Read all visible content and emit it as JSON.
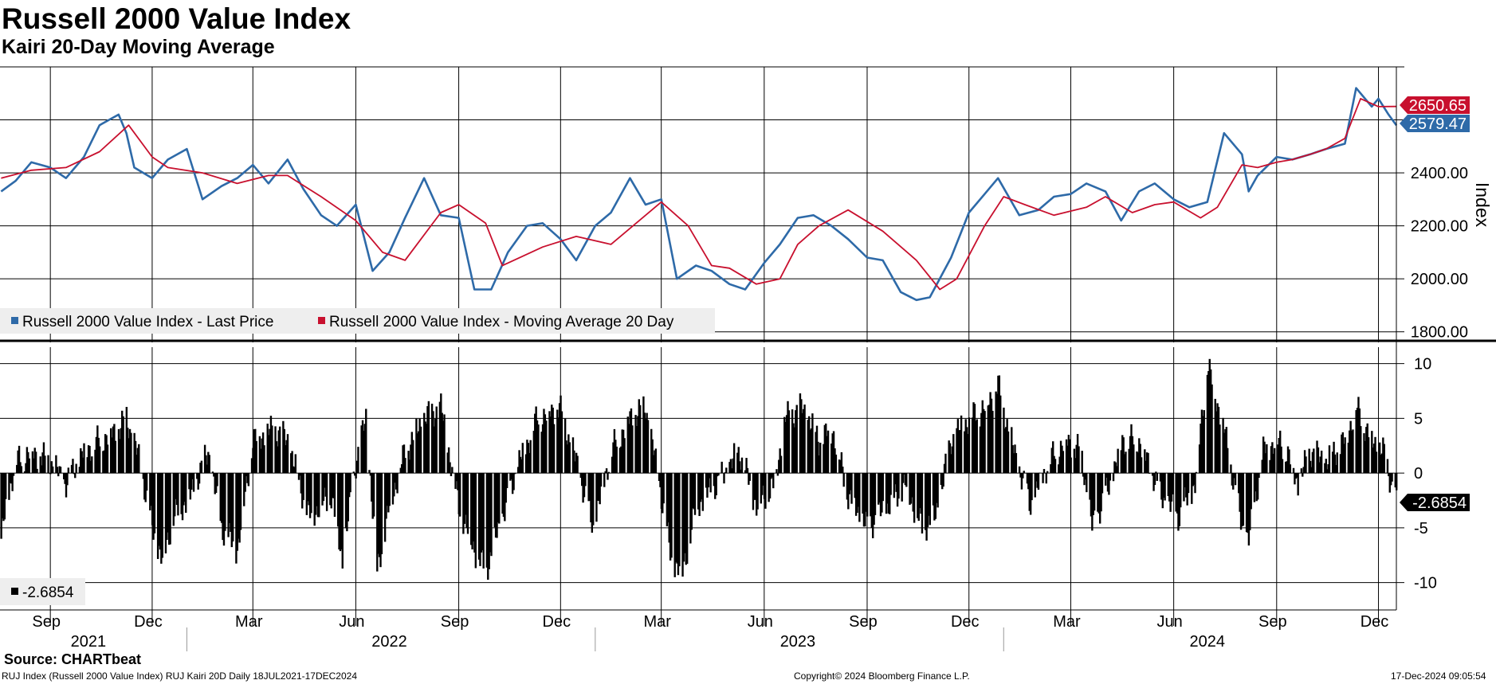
{
  "header": {
    "title": "Russell 2000 Value Index",
    "subtitle": "Kairi 20-Day Moving Average"
  },
  "footer": {
    "source": "Source: CHARTbeat",
    "description": "RUJ Index (Russell 2000 Value Index) RUJ Kairi 20D  Daily 18JUL2021-17DEC2024",
    "copyright": "Copyright© 2024 Bloomberg Finance L.P.",
    "timestamp": "17-Dec-2024 09:05:54"
  },
  "colors": {
    "price_line": "#2e6aa8",
    "ma_line": "#c8102e",
    "kairi_bars": "#000000",
    "grid": "#000000",
    "background": "#ffffff"
  },
  "chart_data": [
    {
      "type": "line",
      "title": "Russell 2000 Value Index",
      "ylabel": "Index",
      "ylim": [
        1760,
        2800
      ],
      "yticks": [
        "1800.00",
        "2000.00",
        "2200.00",
        "2400.00"
      ],
      "x_range": [
        "2021-07-18",
        "2024-12-17"
      ],
      "series": [
        {
          "name": "Russell 2000 Value Index - Last Price",
          "last_value": "2579.47",
          "dates": [
            "2021-07-19",
            "2021-08-01",
            "2021-08-15",
            "2021-09-01",
            "2021-09-15",
            "2021-10-01",
            "2021-10-15",
            "2021-11-01",
            "2021-11-08",
            "2021-11-15",
            "2021-12-01",
            "2021-12-15",
            "2022-01-01",
            "2022-01-15",
            "2022-02-01",
            "2022-02-15",
            "2022-03-01",
            "2022-03-15",
            "2022-04-01",
            "2022-04-15",
            "2022-05-01",
            "2022-05-15",
            "2022-06-01",
            "2022-06-16",
            "2022-07-01",
            "2022-07-15",
            "2022-08-01",
            "2022-08-16",
            "2022-09-01",
            "2022-09-15",
            "2022-09-30",
            "2022-10-15",
            "2022-11-01",
            "2022-11-15",
            "2022-12-01",
            "2022-12-15",
            "2023-01-01",
            "2023-01-15",
            "2023-02-01",
            "2023-02-15",
            "2023-03-01",
            "2023-03-15",
            "2023-04-01",
            "2023-04-15",
            "2023-05-01",
            "2023-05-15",
            "2023-06-01",
            "2023-06-15",
            "2023-07-01",
            "2023-07-15",
            "2023-07-31",
            "2023-08-15",
            "2023-09-01",
            "2023-09-15",
            "2023-10-01",
            "2023-10-15",
            "2023-10-27",
            "2023-11-15",
            "2023-12-01",
            "2023-12-15",
            "2023-12-27",
            "2024-01-15",
            "2024-02-01",
            "2024-02-15",
            "2024-03-01",
            "2024-03-15",
            "2024-04-01",
            "2024-04-15",
            "2024-05-01",
            "2024-05-15",
            "2024-06-01",
            "2024-06-15",
            "2024-07-01",
            "2024-07-16",
            "2024-08-01",
            "2024-08-07",
            "2024-08-15",
            "2024-09-01",
            "2024-09-15",
            "2024-10-01",
            "2024-10-15",
            "2024-11-01",
            "2024-11-11",
            "2024-11-25",
            "2024-12-01",
            "2024-12-10",
            "2024-12-17"
          ],
          "values": [
            2330,
            2370,
            2440,
            2420,
            2380,
            2460,
            2580,
            2620,
            2550,
            2420,
            2380,
            2450,
            2490,
            2300,
            2350,
            2380,
            2430,
            2360,
            2450,
            2340,
            2240,
            2200,
            2280,
            2030,
            2100,
            2230,
            2380,
            2240,
            2230,
            1960,
            1960,
            2100,
            2200,
            2210,
            2150,
            2070,
            2200,
            2250,
            2380,
            2280,
            2300,
            2000,
            2050,
            2030,
            1980,
            1960,
            2060,
            2130,
            2230,
            2240,
            2200,
            2150,
            2080,
            2070,
            1950,
            1920,
            1930,
            2080,
            2250,
            2320,
            2380,
            2240,
            2260,
            2310,
            2320,
            2360,
            2330,
            2220,
            2330,
            2360,
            2300,
            2270,
            2290,
            2550,
            2470,
            2330,
            2390,
            2460,
            2450,
            2470,
            2490,
            2510,
            2720,
            2650,
            2680,
            2620,
            2579.47
          ]
        },
        {
          "name": "Russell 2000 Value Index - Moving Average 20 Day",
          "last_value": "2650.65",
          "dates": [
            "2021-07-19",
            "2021-08-15",
            "2021-09-15",
            "2021-10-15",
            "2021-11-10",
            "2021-12-01",
            "2021-12-15",
            "2022-01-15",
            "2022-02-15",
            "2022-03-15",
            "2022-04-01",
            "2022-05-01",
            "2022-06-01",
            "2022-06-25",
            "2022-07-15",
            "2022-08-16",
            "2022-09-01",
            "2022-09-25",
            "2022-10-10",
            "2022-11-15",
            "2022-12-15",
            "2023-01-15",
            "2023-02-15",
            "2023-03-01",
            "2023-03-25",
            "2023-04-15",
            "2023-05-01",
            "2023-05-25",
            "2023-06-15",
            "2023-07-01",
            "2023-07-20",
            "2023-08-15",
            "2023-09-15",
            "2023-10-15",
            "2023-11-05",
            "2023-11-20",
            "2023-12-15",
            "2024-01-01",
            "2024-01-20",
            "2024-02-15",
            "2024-03-15",
            "2024-04-01",
            "2024-04-25",
            "2024-05-15",
            "2024-06-01",
            "2024-06-25",
            "2024-07-10",
            "2024-08-01",
            "2024-08-15",
            "2024-09-01",
            "2024-09-15",
            "2024-10-01",
            "2024-10-15",
            "2024-11-01",
            "2024-11-15",
            "2024-12-01",
            "2024-12-17"
          ],
          "values": [
            2380,
            2410,
            2420,
            2480,
            2580,
            2460,
            2420,
            2400,
            2360,
            2390,
            2390,
            2310,
            2220,
            2100,
            2070,
            2250,
            2280,
            2210,
            2050,
            2120,
            2160,
            2130,
            2240,
            2290,
            2200,
            2050,
            2040,
            1980,
            2000,
            2130,
            2200,
            2260,
            2180,
            2070,
            1960,
            2000,
            2200,
            2310,
            2280,
            2240,
            2270,
            2310,
            2250,
            2280,
            2290,
            2230,
            2270,
            2430,
            2420,
            2440,
            2450,
            2470,
            2490,
            2530,
            2680,
            2650,
            2650.65
          ]
        }
      ],
      "legend": [
        "Russell 2000 Value Index - Last Price",
        "Russell 2000 Value Index - Moving Average 20 Day"
      ],
      "legend_position": "bottom-left"
    },
    {
      "type": "bar",
      "title": "RUJ Kairi 20D",
      "ylim": [
        -12.5,
        11.5
      ],
      "yticks": [
        "10",
        "5",
        "0",
        "-5",
        "-10"
      ],
      "x_range": [
        "2021-07-18",
        "2024-12-17"
      ],
      "dates": [
        "2021-07-19",
        "2021-07-25",
        "2021-08-01",
        "2021-08-15",
        "2021-09-01",
        "2021-09-15",
        "2021-10-01",
        "2021-10-15",
        "2021-11-01",
        "2021-11-08",
        "2021-11-20",
        "2021-12-01",
        "2021-12-10",
        "2021-12-20",
        "2022-01-05",
        "2022-01-20",
        "2022-02-01",
        "2022-02-15",
        "2022-03-01",
        "2022-03-20",
        "2022-04-01",
        "2022-04-20",
        "2022-05-10",
        "2022-05-20",
        "2022-06-01",
        "2022-06-10",
        "2022-06-20",
        "2022-07-01",
        "2022-07-15",
        "2022-08-01",
        "2022-08-16",
        "2022-09-01",
        "2022-09-15",
        "2022-09-25",
        "2022-10-10",
        "2022-10-25",
        "2022-11-10",
        "2022-11-30",
        "2022-12-15",
        "2022-12-30",
        "2023-01-15",
        "2023-02-01",
        "2023-02-15",
        "2023-03-01",
        "2023-03-10",
        "2023-03-20",
        "2023-04-01",
        "2023-04-20",
        "2023-05-10",
        "2023-05-25",
        "2023-06-10",
        "2023-06-20",
        "2023-07-05",
        "2023-07-20",
        "2023-08-01",
        "2023-08-15",
        "2023-09-01",
        "2023-09-20",
        "2023-10-05",
        "2023-10-20",
        "2023-11-01",
        "2023-11-15",
        "2023-12-01",
        "2023-12-15",
        "2023-12-27",
        "2024-01-10",
        "2024-01-25",
        "2024-02-10",
        "2024-02-25",
        "2024-03-10",
        "2024-03-20",
        "2024-04-05",
        "2024-04-16",
        "2024-05-01",
        "2024-05-20",
        "2024-06-05",
        "2024-06-20",
        "2024-07-01",
        "2024-07-16",
        "2024-08-01",
        "2024-08-07",
        "2024-08-20",
        "2024-09-01",
        "2024-09-10",
        "2024-09-20",
        "2024-10-01",
        "2024-10-15",
        "2024-11-01",
        "2024-11-11",
        "2024-11-25",
        "2024-12-05",
        "2024-12-17"
      ],
      "values": [
        -6,
        -2,
        1,
        2,
        1,
        -1,
        2,
        3,
        4,
        5,
        1,
        -5,
        -8,
        -4,
        -2,
        2,
        -5,
        -7,
        3,
        4,
        3,
        -4,
        -2,
        -8,
        1,
        5,
        -9,
        -3,
        2,
        5,
        6,
        -3,
        -7,
        -9,
        -4,
        1,
        5,
        6,
        1,
        -5,
        2,
        5,
        6,
        -2,
        -8,
        -9,
        -3,
        -1,
        2,
        -3,
        -1,
        5,
        6,
        3,
        4,
        -2,
        -5,
        -3,
        -1,
        -5,
        -4,
        3,
        5,
        6,
        8,
        2,
        -3,
        1,
        3,
        2,
        -5,
        -1,
        3,
        3,
        -2,
        -4,
        -1,
        10,
        4,
        -5,
        -6,
        2,
        3,
        2,
        -1,
        2,
        1,
        3,
        6,
        3,
        2,
        -2.6854
      ],
      "last_value": "-2.6854",
      "legend": [
        "-2.6854"
      ],
      "legend_position": "bottom-left"
    }
  ],
  "x_axis": {
    "month_labels": [
      {
        "label": "Sep",
        "date": "2021-09-01"
      },
      {
        "label": "Dec",
        "date": "2021-12-01"
      },
      {
        "label": "Mar",
        "date": "2022-03-01"
      },
      {
        "label": "Jun",
        "date": "2022-06-01"
      },
      {
        "label": "Sep",
        "date": "2022-09-01"
      },
      {
        "label": "Dec",
        "date": "2022-12-01"
      },
      {
        "label": "Mar",
        "date": "2023-03-01"
      },
      {
        "label": "Jun",
        "date": "2023-06-01"
      },
      {
        "label": "Sep",
        "date": "2023-09-01"
      },
      {
        "label": "Dec",
        "date": "2023-12-01"
      },
      {
        "label": "Mar",
        "date": "2024-03-01"
      },
      {
        "label": "Jun",
        "date": "2024-06-01"
      },
      {
        "label": "Sep",
        "date": "2024-09-01"
      },
      {
        "label": "Dec",
        "date": "2024-12-01"
      }
    ],
    "year_labels": [
      {
        "label": "2021",
        "date": "2021-10-05"
      },
      {
        "label": "2022",
        "date": "2022-07-01"
      },
      {
        "label": "2023",
        "date": "2023-07-01"
      },
      {
        "label": "2024",
        "date": "2024-07-01"
      }
    ],
    "year_boundaries": [
      "2022-01-01",
      "2023-01-01",
      "2024-01-01"
    ]
  }
}
